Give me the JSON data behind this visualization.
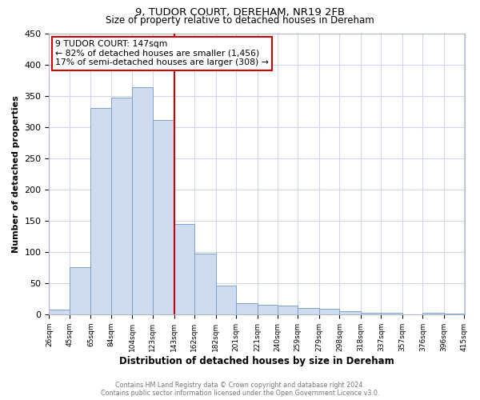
{
  "title": "9, TUDOR COURT, DEREHAM, NR19 2FB",
  "subtitle": "Size of property relative to detached houses in Dereham",
  "xlabel": "Distribution of detached houses by size in Dereham",
  "ylabel": "Number of detached properties",
  "bar_edges": [
    26,
    45,
    65,
    84,
    104,
    123,
    143,
    162,
    182,
    201,
    221,
    240,
    259,
    279,
    298,
    318,
    337,
    357,
    376,
    396,
    415
  ],
  "bar_heights": [
    7,
    76,
    330,
    347,
    363,
    311,
    144,
    97,
    46,
    18,
    15,
    14,
    10,
    9,
    5,
    3,
    2,
    0,
    2,
    1
  ],
  "bar_color": "#cfdcef",
  "bar_edgecolor": "#7aa3cc",
  "vline_x": 143,
  "vline_color": "#cc0000",
  "annotation_line1": "9 TUDOR COURT: 147sqm",
  "annotation_line2": "← 82% of detached houses are smaller (1,456)",
  "annotation_line3": "17% of semi-detached houses are larger (308) →",
  "annotation_box_edgecolor": "#cc0000",
  "annotation_bg": "#ffffff",
  "ylim": [
    0,
    450
  ],
  "yticks": [
    0,
    50,
    100,
    150,
    200,
    250,
    300,
    350,
    400,
    450
  ],
  "footer_line1": "Contains HM Land Registry data © Crown copyright and database right 2024.",
  "footer_line2": "Contains public sector information licensed under the Open Government Licence v3.0.",
  "bg_color": "#ffffff",
  "plot_bg_color": "#ffffff",
  "grid_color": "#d0d8e8"
}
